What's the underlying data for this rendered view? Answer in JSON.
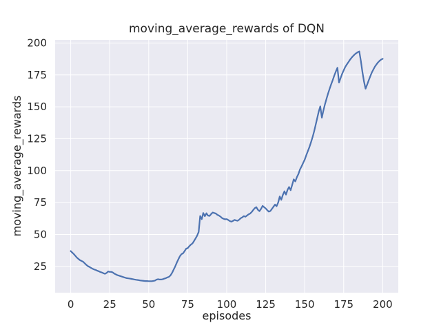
{
  "chart_data": {
    "type": "line",
    "title": "moving_average_rewards of DQN",
    "xlabel": "episodes",
    "ylabel": "moving_average_rewards",
    "xlim": [
      -10,
      210
    ],
    "ylim": [
      4.4,
      202.4
    ],
    "xticks": [
      0,
      25,
      50,
      75,
      100,
      125,
      150,
      175,
      200
    ],
    "yticks": [
      25,
      50,
      75,
      100,
      125,
      150,
      175,
      200
    ],
    "grid": true,
    "legend_position": "none",
    "style": {
      "plot_background": "#eaeaf2",
      "figure_background": "#ffffff",
      "gridline_color": "#ffffff",
      "text_color": "#262626",
      "line_color": "#4c72b0",
      "line_width": 2.2
    },
    "series": [
      {
        "name": "DQN moving average rewards",
        "color": "#4c72b0",
        "points": [
          [
            0,
            37
          ],
          [
            1,
            35.8
          ],
          [
            2,
            34.6
          ],
          [
            3,
            33.2
          ],
          [
            4,
            31.8
          ],
          [
            5,
            30.8
          ],
          [
            6,
            29.8
          ],
          [
            7,
            29.2
          ],
          [
            8,
            28.6
          ],
          [
            9,
            27.4
          ],
          [
            10,
            26.2
          ],
          [
            11,
            25.2
          ],
          [
            12,
            24.6
          ],
          [
            13,
            23.8
          ],
          [
            14,
            23.2
          ],
          [
            15,
            22.6
          ],
          [
            16,
            22.2
          ],
          [
            17,
            21.6
          ],
          [
            18,
            21.2
          ],
          [
            19,
            20.6
          ],
          [
            20,
            20.2
          ],
          [
            21,
            19.6
          ],
          [
            22,
            19.2
          ],
          [
            23,
            19.9
          ],
          [
            24,
            21
          ],
          [
            25,
            20.7
          ],
          [
            26,
            20.7
          ],
          [
            27,
            20.2
          ],
          [
            28,
            19.3
          ],
          [
            29,
            18.7
          ],
          [
            30,
            18.1
          ],
          [
            31,
            17.7
          ],
          [
            32,
            17.3
          ],
          [
            33,
            16.9
          ],
          [
            34,
            16.5
          ],
          [
            35,
            16.1
          ],
          [
            36,
            15.8
          ],
          [
            37,
            15.6
          ],
          [
            38,
            15.4
          ],
          [
            39,
            15.2
          ],
          [
            40,
            15
          ],
          [
            41,
            14.7
          ],
          [
            42,
            14.5
          ],
          [
            43,
            14.3
          ],
          [
            44,
            14.1
          ],
          [
            45,
            13.9
          ],
          [
            46,
            13.8
          ],
          [
            47,
            13.6
          ],
          [
            48,
            13.5
          ],
          [
            49,
            13.5
          ],
          [
            50,
            13.4
          ],
          [
            51,
            13.4
          ],
          [
            52,
            13.4
          ],
          [
            53,
            13.6
          ],
          [
            54,
            13.9
          ],
          [
            55,
            14.6
          ],
          [
            56,
            15
          ],
          [
            57,
            14.7
          ],
          [
            58,
            14.7
          ],
          [
            59,
            15
          ],
          [
            60,
            15.4
          ],
          [
            61,
            15.8
          ],
          [
            62,
            16.4
          ],
          [
            63,
            16.8
          ],
          [
            64,
            18
          ],
          [
            65,
            20
          ],
          [
            66,
            22.5
          ],
          [
            67,
            25
          ],
          [
            68,
            28
          ],
          [
            69,
            30.5
          ],
          [
            70,
            33
          ],
          [
            71,
            34.6
          ],
          [
            72,
            35.2
          ],
          [
            73,
            37
          ],
          [
            74,
            38.8
          ],
          [
            75,
            39.3
          ],
          [
            76,
            40.8
          ],
          [
            77,
            42
          ],
          [
            78,
            42.9
          ],
          [
            79,
            44.8
          ],
          [
            80,
            46.8
          ],
          [
            81,
            49
          ],
          [
            82,
            52
          ],
          [
            83,
            64.5
          ],
          [
            84,
            62
          ],
          [
            85,
            66.8
          ],
          [
            86,
            64.3
          ],
          [
            87,
            66.6
          ],
          [
            88,
            64.8
          ],
          [
            89,
            64.5
          ],
          [
            90,
            66
          ],
          [
            91,
            67.2
          ],
          [
            92,
            66.8
          ],
          [
            93,
            66.4
          ],
          [
            94,
            65.4
          ],
          [
            95,
            64.8
          ],
          [
            96,
            64
          ],
          [
            97,
            62.9
          ],
          [
            98,
            62.3
          ],
          [
            99,
            61.9
          ],
          [
            100,
            62
          ],
          [
            101,
            61.3
          ],
          [
            102,
            60.5
          ],
          [
            103,
            60
          ],
          [
            104,
            60.6
          ],
          [
            105,
            61.4
          ],
          [
            106,
            61
          ],
          [
            107,
            60.7
          ],
          [
            108,
            61.6
          ],
          [
            109,
            62.8
          ],
          [
            110,
            63.4
          ],
          [
            111,
            64.4
          ],
          [
            112,
            63.9
          ],
          [
            113,
            64.8
          ],
          [
            114,
            65.8
          ],
          [
            115,
            66.4
          ],
          [
            116,
            67.6
          ],
          [
            117,
            69.2
          ],
          [
            118,
            70.6
          ],
          [
            119,
            71.4
          ],
          [
            120,
            69.3
          ],
          [
            121,
            68.3
          ],
          [
            122,
            70
          ],
          [
            123,
            72.4
          ],
          [
            124,
            71.4
          ],
          [
            125,
            70.4
          ],
          [
            126,
            69
          ],
          [
            127,
            67.9
          ],
          [
            128,
            68.4
          ],
          [
            129,
            70
          ],
          [
            130,
            71.8
          ],
          [
            131,
            73.4
          ],
          [
            132,
            72.1
          ],
          [
            133,
            75
          ],
          [
            134,
            79.8
          ],
          [
            135,
            77.1
          ],
          [
            136,
            81
          ],
          [
            137,
            83.8
          ],
          [
            138,
            81.2
          ],
          [
            139,
            85
          ],
          [
            140,
            87.2
          ],
          [
            141,
            84.7
          ],
          [
            142,
            89
          ],
          [
            143,
            93.2
          ],
          [
            144,
            91.6
          ],
          [
            145,
            95
          ],
          [
            146,
            97.4
          ],
          [
            147,
            101
          ],
          [
            148,
            103.4
          ],
          [
            149,
            106
          ],
          [
            150,
            108.6
          ],
          [
            151,
            112
          ],
          [
            152,
            115.2
          ],
          [
            153,
            118.4
          ],
          [
            154,
            122
          ],
          [
            155,
            126
          ],
          [
            156,
            130.6
          ],
          [
            157,
            135.6
          ],
          [
            158,
            141
          ],
          [
            159,
            146.4
          ],
          [
            160,
            150.4
          ],
          [
            161,
            141.5
          ],
          [
            162,
            147
          ],
          [
            163,
            152
          ],
          [
            164,
            156.4
          ],
          [
            165,
            160.4
          ],
          [
            166,
            164.2
          ],
          [
            167,
            167.8
          ],
          [
            168,
            171
          ],
          [
            169,
            174.6
          ],
          [
            170,
            177.8
          ],
          [
            171,
            180.6
          ],
          [
            172,
            169
          ],
          [
            173,
            172.4
          ],
          [
            174,
            175.8
          ],
          [
            175,
            178.6
          ],
          [
            176,
            181.2
          ],
          [
            177,
            183.2
          ],
          [
            178,
            185
          ],
          [
            179,
            186.8
          ],
          [
            180,
            188.4
          ],
          [
            181,
            189.8
          ],
          [
            182,
            191
          ],
          [
            183,
            192
          ],
          [
            184,
            192.8
          ],
          [
            185,
            193.4
          ],
          [
            186,
            186
          ],
          [
            187,
            177.5
          ],
          [
            188,
            170
          ],
          [
            189,
            164.2
          ],
          [
            190,
            167.2
          ],
          [
            191,
            170.6
          ],
          [
            192,
            173.8
          ],
          [
            193,
            176.8
          ],
          [
            194,
            179.2
          ],
          [
            195,
            181.4
          ],
          [
            196,
            183.2
          ],
          [
            197,
            184.8
          ],
          [
            198,
            186
          ],
          [
            199,
            187
          ],
          [
            200,
            187.6
          ]
        ]
      }
    ]
  }
}
